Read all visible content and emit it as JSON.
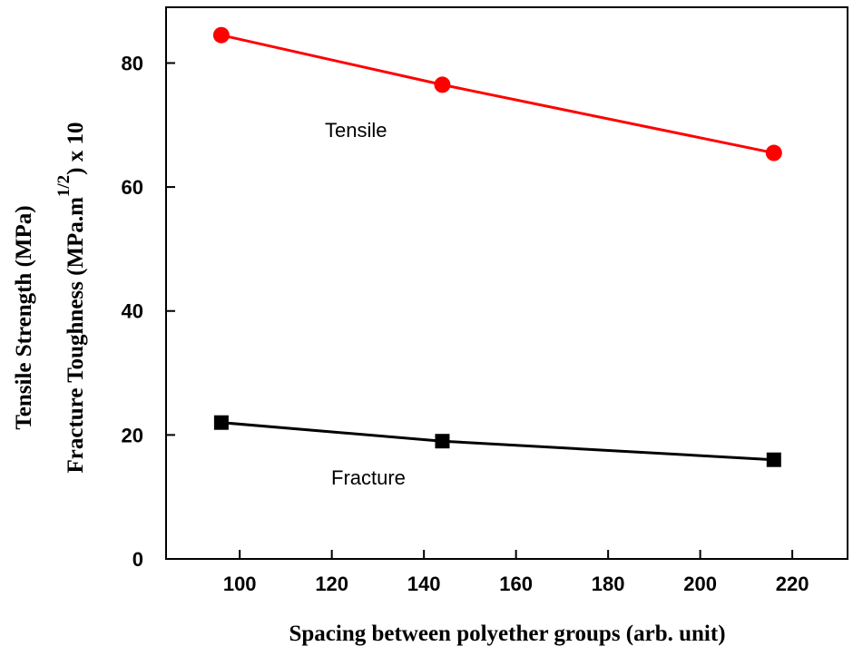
{
  "chart_data": {
    "type": "line",
    "xlabel": "Spacing between polyether groups (arb. unit)",
    "ylabel_line1": "Tensile Strength (MPa)",
    "ylabel_line2_main": "Fracture Toughness (MPa.m",
    "ylabel_line2_sup": "1/2",
    "ylabel_line2_tail": ") x 10",
    "xlim": [
      84,
      232
    ],
    "ylim": [
      0,
      89
    ],
    "x_ticks": [
      100,
      120,
      140,
      160,
      180,
      200,
      220
    ],
    "y_ticks": [
      0,
      20,
      40,
      60,
      80
    ],
    "grid": false,
    "series": [
      {
        "name": "Tensile",
        "marker": "circle",
        "color": "#ff0000",
        "x": [
          96,
          144,
          216
        ],
        "values": [
          84.5,
          76.5,
          65.5
        ]
      },
      {
        "name": "Fracture",
        "marker": "square",
        "color": "#000000",
        "x": [
          96,
          144,
          216
        ],
        "values": [
          22,
          19,
          16
        ]
      }
    ],
    "annotations": [
      {
        "text": "Tensile",
        "series": "Tensile"
      },
      {
        "text": "Fracture",
        "series": "Fracture"
      }
    ]
  }
}
